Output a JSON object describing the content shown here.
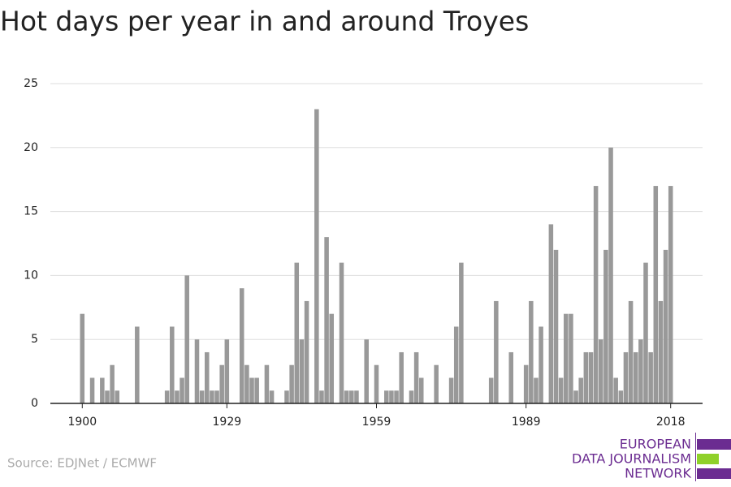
{
  "chart_data": {
    "type": "bar",
    "title": "Hot days per year in and around Troyes",
    "source": "Source: EDJNet / ECMWF",
    "logo": [
      "EUROPEAN",
      "DATA JOURNALISM",
      "NETWORK"
    ],
    "color": "#999999",
    "grid": true,
    "x": [
      1900,
      1901,
      1902,
      1903,
      1904,
      1905,
      1906,
      1907,
      1908,
      1909,
      1910,
      1911,
      1912,
      1913,
      1914,
      1915,
      1916,
      1917,
      1918,
      1919,
      1920,
      1921,
      1922,
      1923,
      1924,
      1925,
      1926,
      1927,
      1928,
      1929,
      1930,
      1931,
      1932,
      1933,
      1934,
      1935,
      1936,
      1937,
      1938,
      1939,
      1940,
      1941,
      1942,
      1943,
      1944,
      1945,
      1946,
      1947,
      1948,
      1949,
      1950,
      1951,
      1952,
      1953,
      1954,
      1955,
      1956,
      1957,
      1958,
      1959,
      1960,
      1961,
      1962,
      1963,
      1964,
      1965,
      1966,
      1967,
      1968,
      1969,
      1970,
      1971,
      1972,
      1973,
      1974,
      1975,
      1976,
      1977,
      1978,
      1979,
      1980,
      1981,
      1982,
      1983,
      1984,
      1985,
      1986,
      1987,
      1988,
      1989,
      1990,
      1991,
      1992,
      1993,
      1994,
      1995,
      1996,
      1997,
      1998,
      1999,
      2000,
      2001,
      2002,
      2003,
      2004,
      2005,
      2006,
      2007,
      2008,
      2009,
      2010,
      2011,
      2012,
      2013,
      2014,
      2015,
      2016,
      2017,
      2018
    ],
    "values": [
      7,
      0,
      2,
      0,
      2,
      1,
      3,
      1,
      0,
      0,
      0,
      6,
      0,
      0,
      0,
      0,
      0,
      1,
      6,
      1,
      2,
      10,
      0,
      5,
      1,
      4,
      1,
      1,
      3,
      5,
      0,
      0,
      9,
      3,
      2,
      2,
      0,
      3,
      1,
      0,
      0,
      1,
      3,
      11,
      5,
      8,
      0,
      23,
      1,
      13,
      7,
      0,
      11,
      1,
      1,
      1,
      0,
      5,
      0,
      3,
      0,
      1,
      1,
      1,
      4,
      0,
      1,
      4,
      2,
      0,
      0,
      3,
      0,
      0,
      2,
      6,
      11,
      0,
      0,
      0,
      0,
      0,
      2,
      8,
      0,
      0,
      4,
      0,
      0,
      3,
      8,
      2,
      6,
      0,
      14,
      12,
      2,
      7,
      7,
      1,
      2,
      4,
      4,
      17,
      5,
      12,
      20,
      2,
      1,
      4,
      8,
      4,
      5,
      11,
      4,
      17,
      8,
      12,
      17
    ],
    "xlim": [
      1893.6,
      2024.4
    ],
    "xticks": [
      1900,
      1929,
      1959,
      1989,
      2018
    ],
    "ylim": [
      0,
      25
    ],
    "yticks": [
      0,
      5,
      10,
      15,
      20,
      25
    ]
  }
}
